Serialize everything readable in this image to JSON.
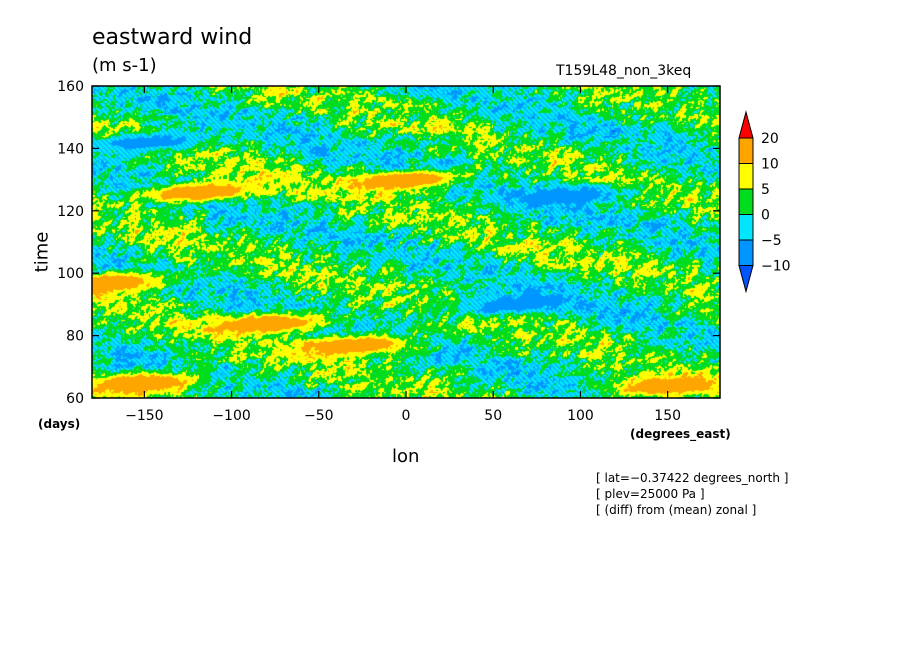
{
  "chart_data": {
    "type": "heatmap",
    "title": "eastward wind",
    "units": "(m s-1)",
    "run_name": "T159L48_non_3keq",
    "xlabel": "lon",
    "x_units": "(degrees_east)",
    "ylabel": "time",
    "y_units": "(days)",
    "xlim": [
      -180,
      180
    ],
    "ylim": [
      60,
      160
    ],
    "x_ticks": [
      -150,
      -100,
      -50,
      0,
      50,
      100,
      150
    ],
    "y_ticks": [
      60,
      80,
      100,
      120,
      140,
      160
    ],
    "colorbar": {
      "levels": [
        -10,
        -5,
        0,
        5,
        10,
        20
      ],
      "level_labels": [
        "20",
        "10",
        "5",
        "0",
        "−5",
        "−10"
      ],
      "colors": [
        "#0055ff",
        "#0096ff",
        "#00e6ff",
        "#00dc1e",
        "#ffff00",
        "#ffa500",
        "#ff0000"
      ]
    },
    "annotations": [
      "[ lat=−0.37422 degrees_north ]",
      "[ plev=25000 Pa ]",
      "[ (diff) from (mean) zonal ]"
    ],
    "features": [
      {
        "lon": 0,
        "time": 130,
        "value": 20
      },
      {
        "lon": -120,
        "time": 126,
        "value": 20
      },
      {
        "lon": -170,
        "time": 97,
        "value": 20
      },
      {
        "lon": -80,
        "time": 84,
        "value": 20
      },
      {
        "lon": -30,
        "time": 77,
        "value": 20
      },
      {
        "lon": -150,
        "time": 65,
        "value": 20
      },
      {
        "lon": 150,
        "time": 64,
        "value": 20
      },
      {
        "lon": 90,
        "time": 125,
        "value": -10
      },
      {
        "lon": -150,
        "time": 142,
        "value": -10
      },
      {
        "lon": 60,
        "time": 90,
        "value": -10
      }
    ]
  }
}
